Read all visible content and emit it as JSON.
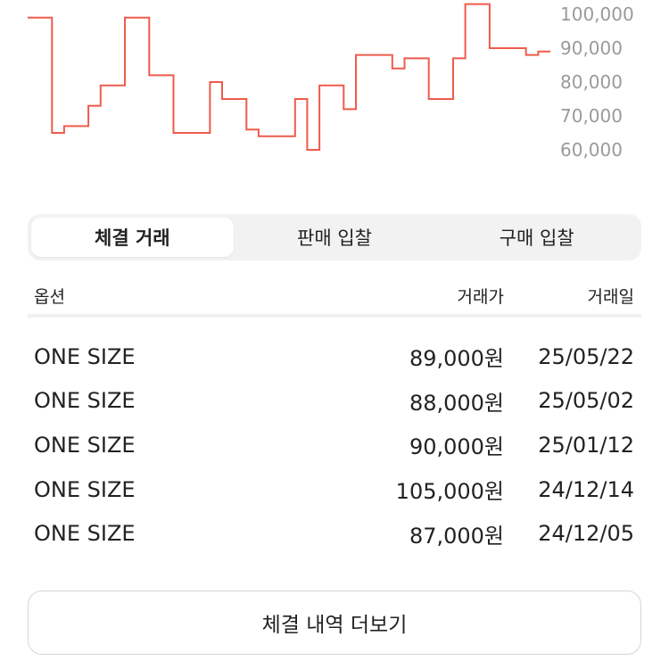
{
  "chart_data": {
    "type": "line",
    "title": "",
    "xlabel": "",
    "ylabel": "",
    "ylim": [
      57000,
      104000
    ],
    "y_ticks": [
      "100,000",
      "90,000",
      "80,000",
      "70,000",
      "60,000"
    ],
    "y_tick_values": [
      100000,
      90000,
      80000,
      70000,
      60000
    ],
    "grid": false,
    "line_color": "#ef5b4c",
    "series": [
      {
        "values": [
          99000,
          99000,
          65000,
          67000,
          67000,
          73000,
          79000,
          79000,
          99000,
          99000,
          82000,
          82000,
          65000,
          65000,
          65000,
          80000,
          75000,
          75000,
          66000,
          64000,
          64000,
          64000,
          75000,
          60000,
          79000,
          79000,
          72000,
          88000,
          88000,
          88000,
          84000,
          87000,
          87000,
          75000,
          75000,
          87000,
          103000,
          103000,
          90000,
          90000,
          90000,
          88000,
          89000,
          89000
        ]
      }
    ]
  },
  "tabs": [
    "체결 거래",
    "판매 입찰",
    "구매 입찰"
  ],
  "active_tab": 0,
  "table": {
    "headers": [
      "옵션",
      "거래가",
      "거래일"
    ],
    "rows": [
      {
        "option": "ONE SIZE",
        "price": "89,000원",
        "date": "25/05/22"
      },
      {
        "option": "ONE SIZE",
        "price": "88,000원",
        "date": "25/05/02"
      },
      {
        "option": "ONE SIZE",
        "price": "90,000원",
        "date": "25/01/12"
      },
      {
        "option": "ONE SIZE",
        "price": "105,000원",
        "date": "24/12/14"
      },
      {
        "option": "ONE SIZE",
        "price": "87,000원",
        "date": "24/12/05"
      }
    ]
  },
  "more_button": "체결 내역 더보기"
}
